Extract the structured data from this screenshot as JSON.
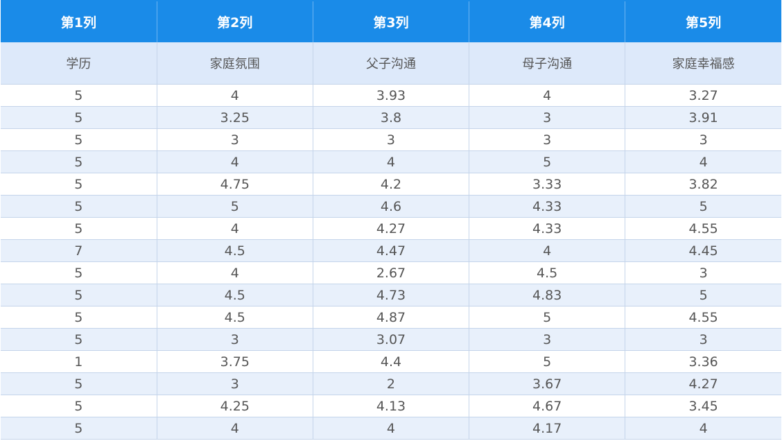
{
  "columns": [
    "第1列",
    "第2列",
    "第3列",
    "第4列",
    "第5列"
  ],
  "subheaders": [
    "学历",
    "家庭氛围",
    "父子沟通",
    "母子沟通",
    "家庭幸福感"
  ],
  "rows": [
    [
      "5",
      "4",
      "3.93",
      "4",
      "3.27"
    ],
    [
      "5",
      "3.25",
      "3.8",
      "3",
      "3.91"
    ],
    [
      "5",
      "3",
      "3",
      "3",
      "3"
    ],
    [
      "5",
      "4",
      "4",
      "5",
      "4"
    ],
    [
      "5",
      "4.75",
      "4.2",
      "3.33",
      "3.82"
    ],
    [
      "5",
      "5",
      "4.6",
      "4.33",
      "5"
    ],
    [
      "5",
      "4",
      "4.27",
      "4.33",
      "4.55"
    ],
    [
      "7",
      "4.5",
      "4.47",
      "4",
      "4.45"
    ],
    [
      "5",
      "4",
      "2.67",
      "4.5",
      "3"
    ],
    [
      "5",
      "4.5",
      "4.73",
      "4.83",
      "5"
    ],
    [
      "5",
      "4.5",
      "4.87",
      "5",
      "4.55"
    ],
    [
      "5",
      "3",
      "3.07",
      "3",
      "3"
    ],
    [
      "1",
      "3.75",
      "4.4",
      "5",
      "3.36"
    ],
    [
      "5",
      "3",
      "2",
      "3.67",
      "4.27"
    ],
    [
      "5",
      "4.25",
      "4.13",
      "4.67",
      "3.45"
    ],
    [
      "5",
      "4",
      "4",
      "4.17",
      "4"
    ]
  ],
  "colors": {
    "header_bg": "#1a8be8",
    "subheader_bg": "#dde9fa",
    "stripe_bg": "#e8f0fb",
    "text": "#555555"
  }
}
